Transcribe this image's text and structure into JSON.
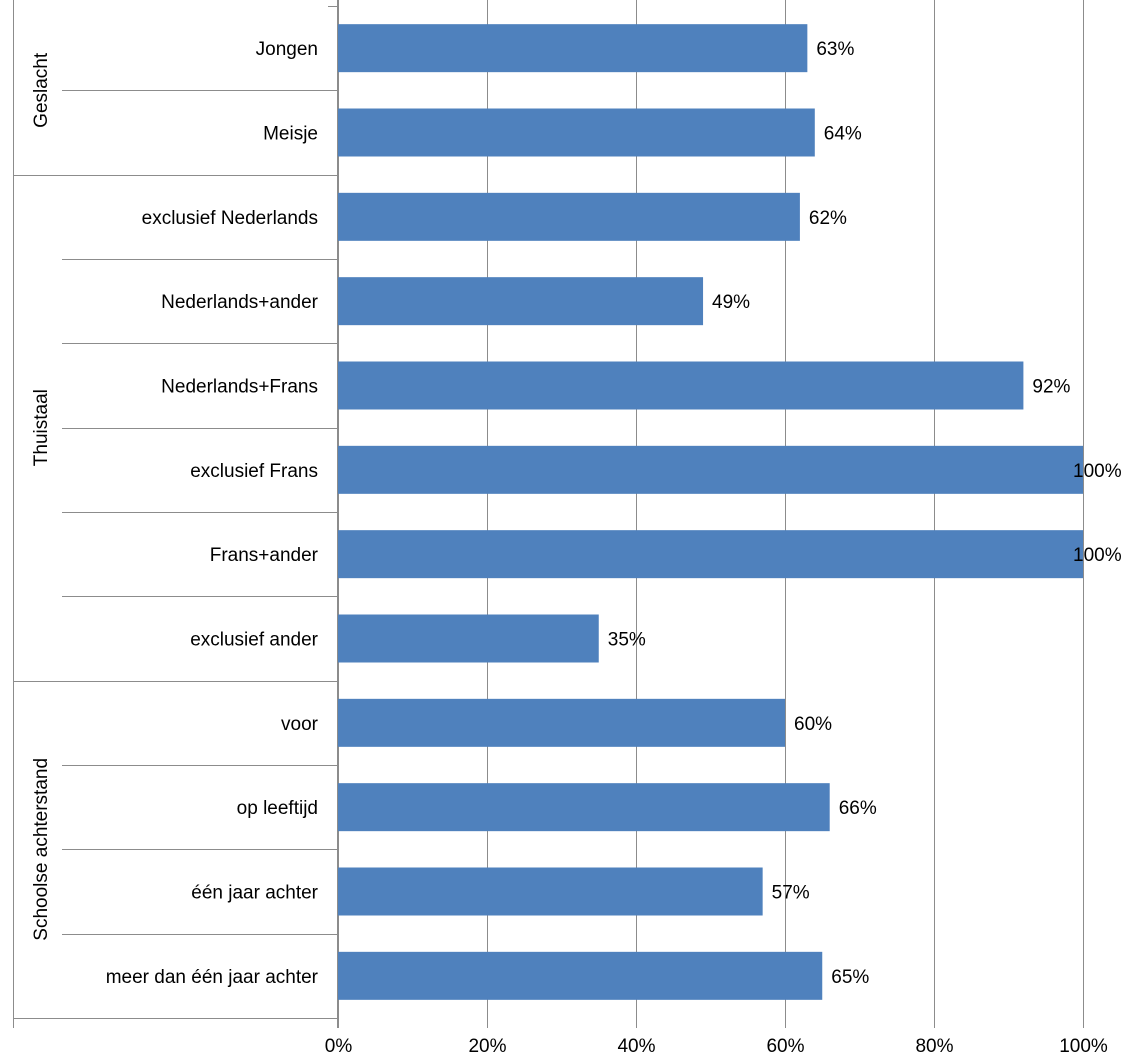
{
  "chart_data": {
    "type": "bar",
    "orientation": "horizontal",
    "grid": true,
    "xlim": [
      0,
      100
    ],
    "x_ticks": [
      "0%",
      "20%",
      "40%",
      "60%",
      "80%",
      "100%"
    ],
    "groups": [
      {
        "name": "Geslacht",
        "categories": [
          "Jongen",
          "Meisje"
        ],
        "values": [
          63,
          64
        ],
        "value_labels": [
          "63%",
          "64%"
        ]
      },
      {
        "name": "Thuistaal",
        "categories": [
          "exclusief Nederlands",
          "Nederlands+ander",
          "Nederlands+Frans",
          "exclusief Frans",
          "Frans+ander",
          "exclusief ander"
        ],
        "values": [
          62,
          49,
          92,
          100,
          100,
          35
        ],
        "value_labels": [
          "62%",
          "49%",
          "92%",
          "100%",
          "100%",
          "35%"
        ]
      },
      {
        "name": "Schoolse achterstand",
        "categories": [
          "voor",
          "op leeftijd",
          "één jaar achter",
          "meer dan één jaar achter"
        ],
        "values": [
          60,
          66,
          57,
          65
        ],
        "value_labels": [
          "60%",
          "66%",
          "57%",
          "65%"
        ]
      }
    ],
    "colors": {
      "bar": "#4F81BD",
      "grid": "#8C8C8C",
      "axis": "#8C8C8C"
    }
  }
}
